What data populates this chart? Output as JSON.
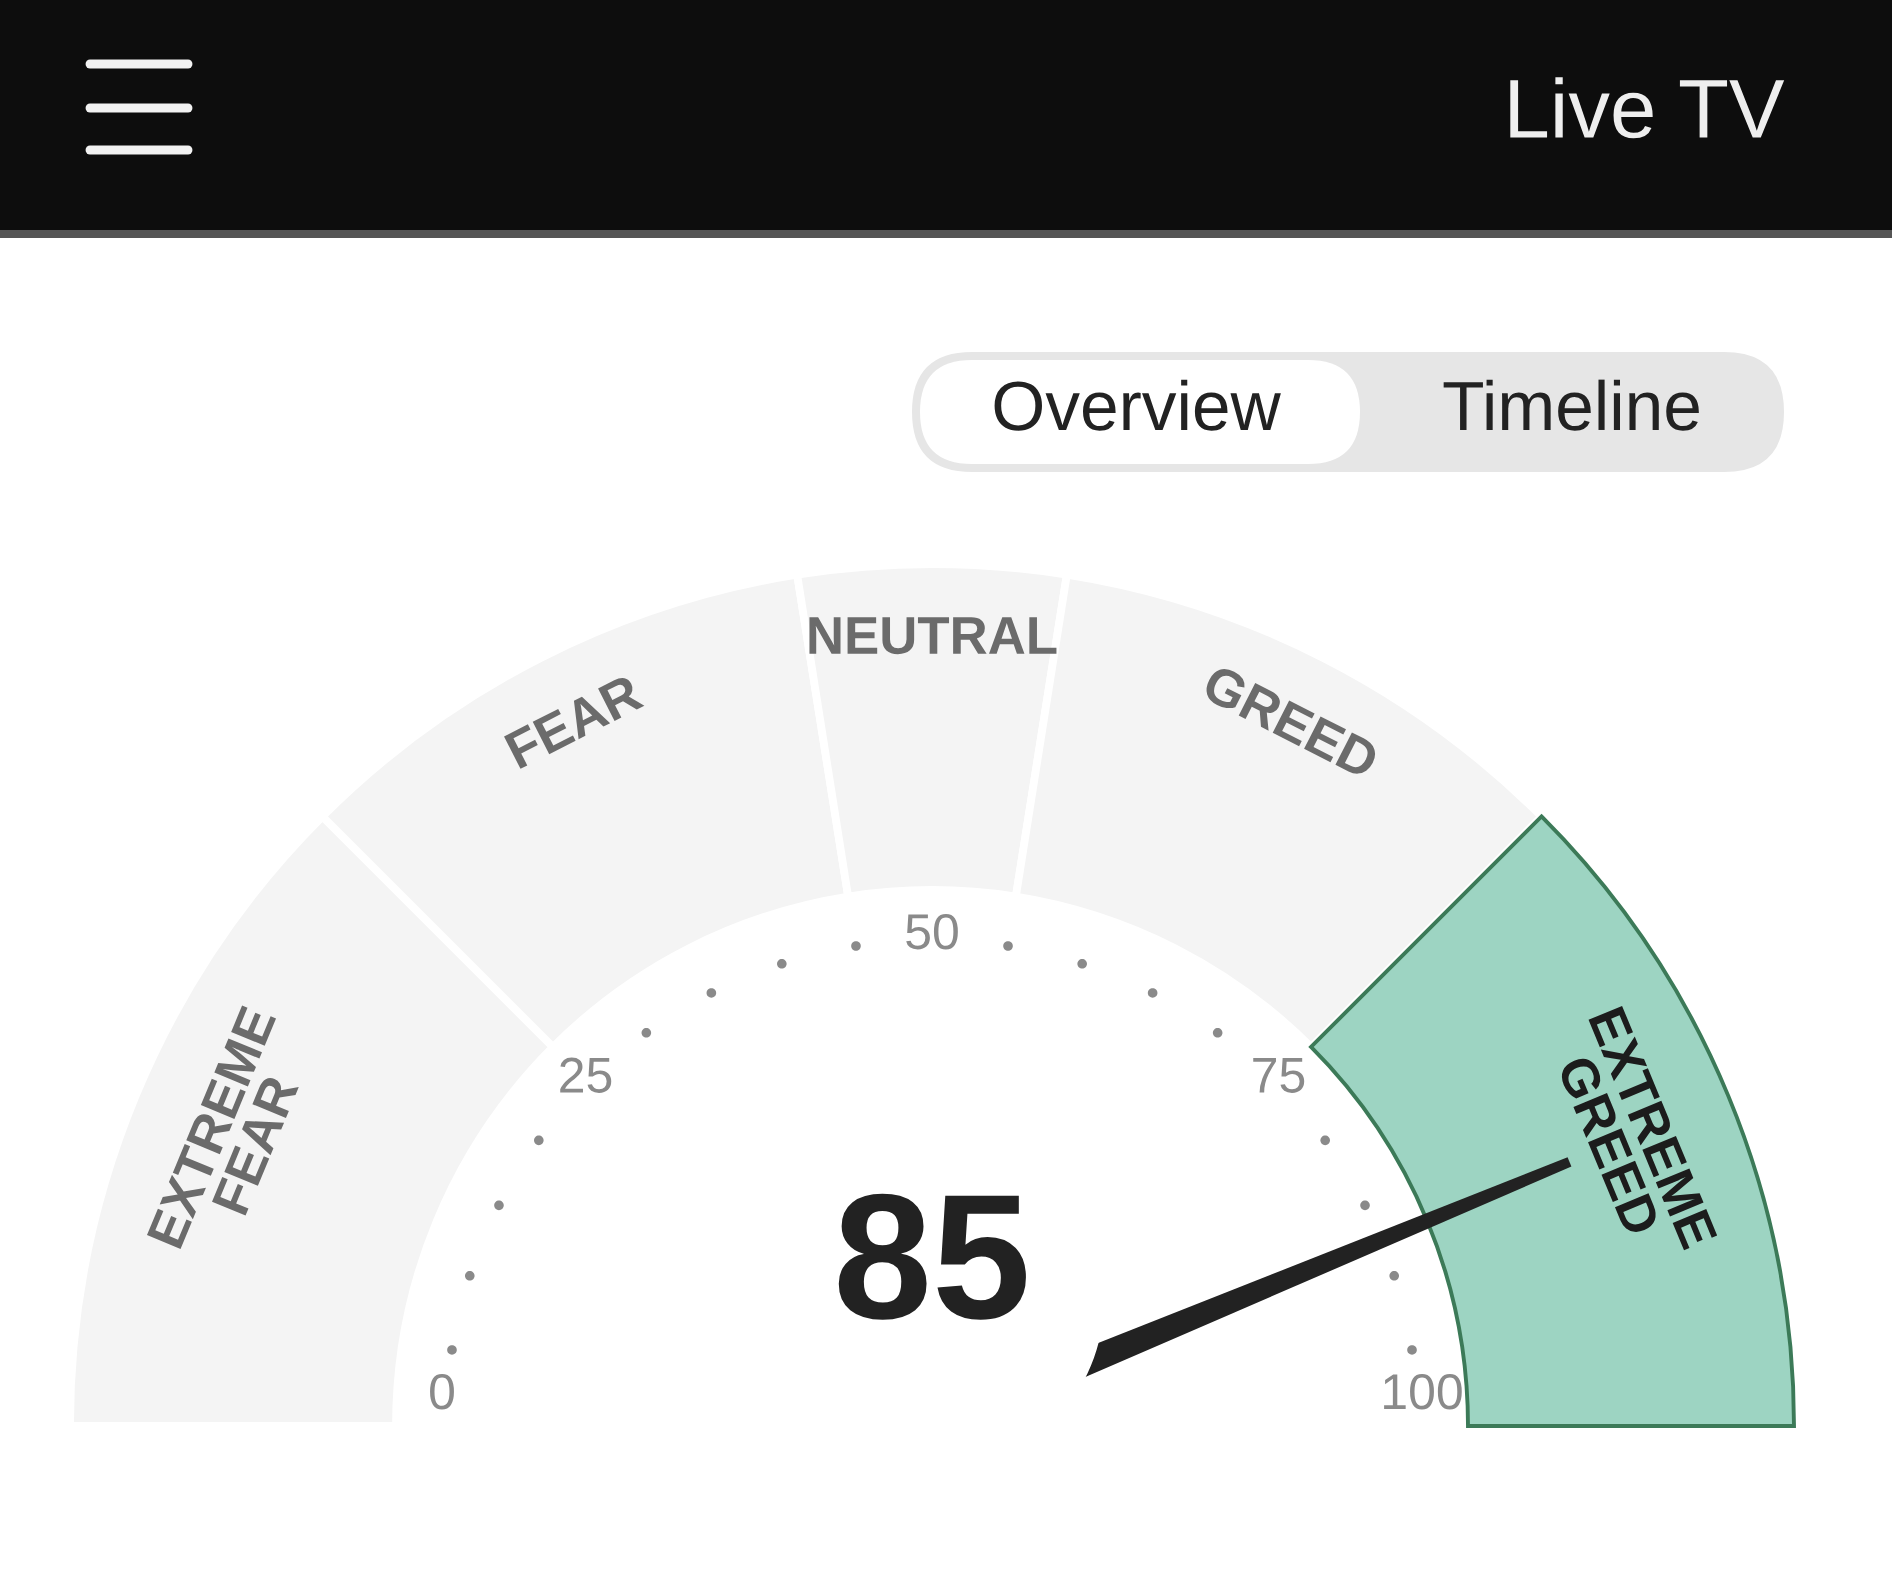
{
  "chart_data": {
    "type": "donut",
    "categories": [
      "EXTREME FEAR",
      "FEAR",
      "NEUTRAL",
      "GREED",
      "EXTREME GREED"
    ],
    "values": [
      25,
      20,
      10,
      20,
      25
    ],
    "colors": [
      "#f4f4f4",
      "#f4f4f4",
      "#f4f4f4",
      "#f4f4f4",
      "#9dd4c2"
    ],
    "needle": "EXTREME GREED",
    "annotations": [
      "85",
      "Overview",
      "Timeline",
      "Live TV",
      "0",
      "25",
      "50",
      "75",
      "100"
    ]
  }
}
